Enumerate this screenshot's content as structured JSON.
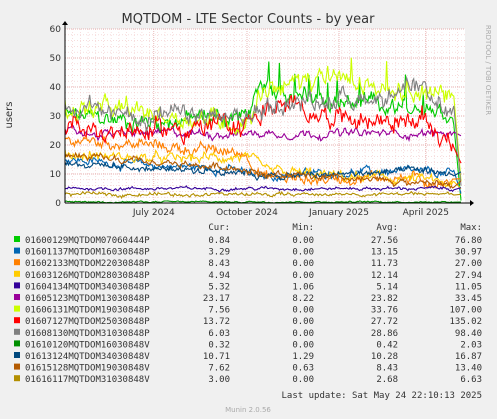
{
  "chart_data": {
    "type": "line",
    "title": "MQTDOM - LTE Sector Counts - by year",
    "ylabel": "users",
    "ylim": [
      0,
      60
    ],
    "yticks": [
      0,
      10,
      20,
      30,
      40,
      50,
      60
    ],
    "xticks": [
      "July 2024",
      "October 2024",
      "January 2025",
      "April 2025"
    ],
    "grid": true,
    "watermark": "RRDTOOL / TOBI OETIKER",
    "columns": [
      "Cur:",
      "Min:",
      "Avg:",
      "Max:"
    ],
    "series": [
      {
        "name": "01600129MQTDOM07060444P",
        "color": "#00cc00",
        "cur": "0.84",
        "min": "0.00",
        "avg": "27.56",
        "max": "76.80"
      },
      {
        "name": "01601137MQTDOM16030848P",
        "color": "#0066b3",
        "cur": "3.29",
        "min": "0.00",
        "avg": "13.15",
        "max": "30.97"
      },
      {
        "name": "01602133MQTDOM22030848P",
        "color": "#ff8000",
        "cur": "8.43",
        "min": "0.00",
        "avg": "11.73",
        "max": "27.00"
      },
      {
        "name": "01603126MQTDOM28030848P",
        "color": "#ffcc00",
        "cur": "4.94",
        "min": "0.00",
        "avg": "12.14",
        "max": "27.94"
      },
      {
        "name": "01604134MQTDOM34030848P",
        "color": "#330099",
        "cur": "5.32",
        "min": "1.06",
        "avg": "5.14",
        "max": "11.05"
      },
      {
        "name": "01605123MQTDOM13030848P",
        "color": "#990099",
        "cur": "23.17",
        "min": "8.22",
        "avg": "23.82",
        "max": "33.45"
      },
      {
        "name": "01606131MQTDOM19030848P",
        "color": "#ccff00",
        "cur": "7.56",
        "min": "0.00",
        "avg": "33.76",
        "max": "107.00"
      },
      {
        "name": "01607127MQTDOM25030848P",
        "color": "#ff0000",
        "cur": "13.72",
        "min": "0.00",
        "avg": "27.72",
        "max": "135.02"
      },
      {
        "name": "01608130MQTDOM31030848P",
        "color": "#808080",
        "cur": "6.03",
        "min": "0.00",
        "avg": "28.86",
        "max": "98.40"
      },
      {
        "name": "01610120MQTDOM16030848V",
        "color": "#008f00",
        "cur": "0.32",
        "min": "0.00",
        "avg": "0.42",
        "max": "2.03"
      },
      {
        "name": "01613124MQTDOM34030848V",
        "color": "#00487d",
        "cur": "10.71",
        "min": "1.29",
        "avg": "10.28",
        "max": "16.87"
      },
      {
        "name": "01615128MQTDOM19030848V",
        "color": "#b35a00",
        "cur": "7.62",
        "min": "0.63",
        "avg": "8.43",
        "max": "13.40"
      },
      {
        "name": "01616117MQTDOM31030848V",
        "color": "#b38f00",
        "cur": "3.00",
        "min": "0.00",
        "avg": "2.68",
        "max": "6.63"
      }
    ],
    "last_update": "Last update: Sat May 24 22:10:13 2025",
    "footer": "Munin 2.0.56"
  }
}
